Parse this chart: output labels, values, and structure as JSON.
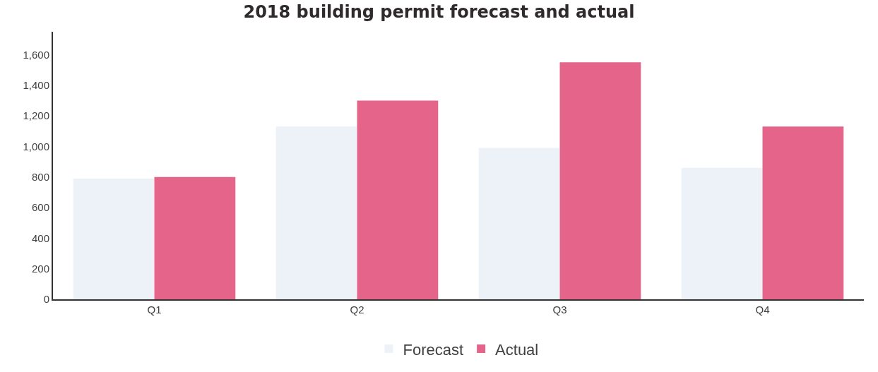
{
  "chart_data": {
    "type": "bar",
    "title": "2018 building permit forecast and actual",
    "categories": [
      "Q1",
      "Q2",
      "Q3",
      "Q4"
    ],
    "series": [
      {
        "name": "Forecast",
        "color": "#edf2f9",
        "values": [
          790,
          1130,
          990,
          860
        ]
      },
      {
        "name": "Actual",
        "color": "#e5658a",
        "values": [
          800,
          1300,
          1550,
          1130
        ]
      }
    ],
    "ylim": [
      0,
      1750
    ],
    "yticks": [
      0,
      {
        "value": 200,
        "label": "200"
      },
      {
        "value": 400,
        "label": "400"
      },
      {
        "value": 600,
        "label": "600"
      },
      {
        "value": 800,
        "label": "800"
      },
      {
        "value": 1000,
        "label": "1,000"
      },
      {
        "value": 1200,
        "label": "1,200"
      },
      {
        "value": 1400,
        "label": "1,400"
      },
      {
        "value": 1600,
        "label": "1,600"
      }
    ],
    "legend": "bottom"
  }
}
